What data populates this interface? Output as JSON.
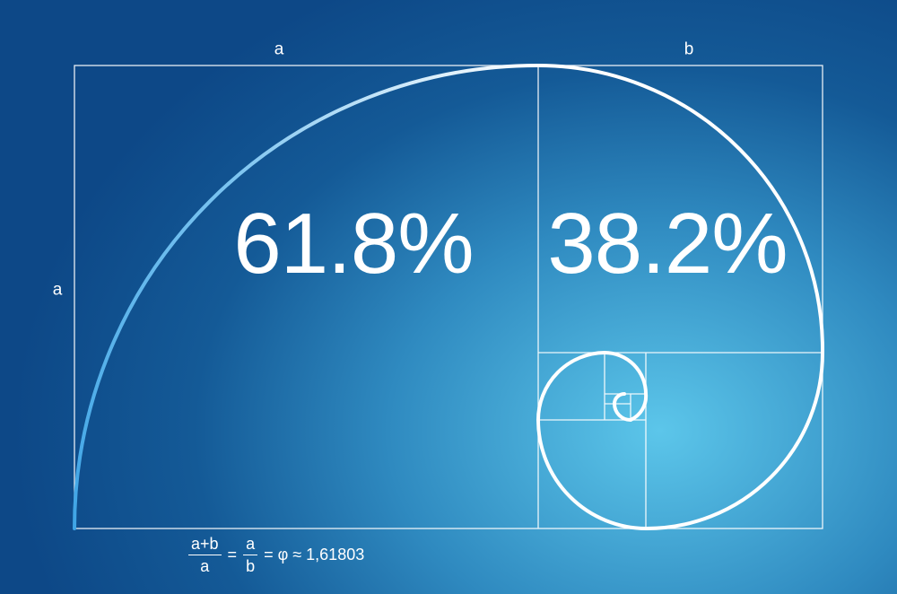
{
  "labels": {
    "top_a": "a",
    "top_b": "b",
    "side_a": "a"
  },
  "percentages": {
    "larger": "61.8%",
    "smaller": "38.2%"
  },
  "formula": {
    "frac1_numerator": "a+b",
    "frac1_denominator": "a",
    "equals1": "=",
    "frac2_numerator": "a",
    "frac2_denominator": "b",
    "equals2": "=",
    "phi": "φ",
    "approx": "≈",
    "value": "1,61803"
  },
  "colors": {
    "line": "#ffffff",
    "spiral_gradient_start": "#3fa5e6",
    "background_center": "#5cc6ea",
    "background_edge": "#0d4887"
  }
}
